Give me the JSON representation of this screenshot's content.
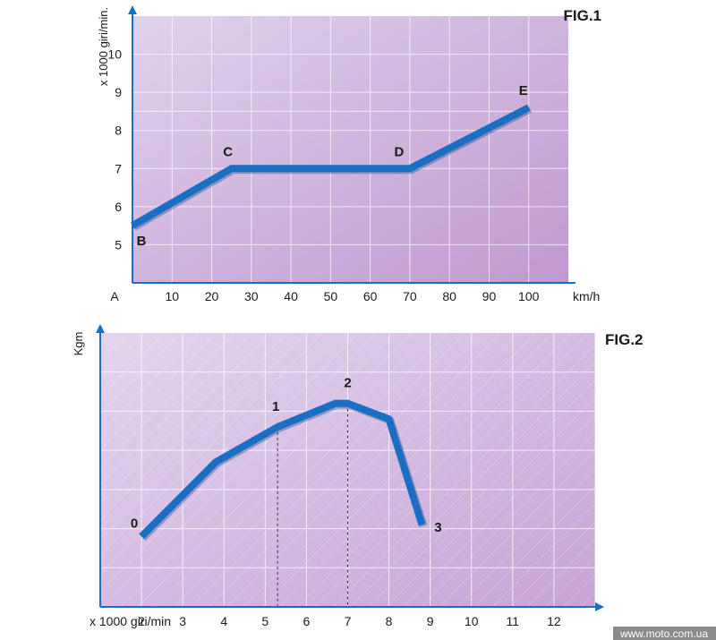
{
  "chart_data": [
    {
      "type": "line",
      "figure_label": "FIG.1",
      "xlabel": "km/h",
      "ylabel": "x 1000 giri/min.",
      "origin_label": "A",
      "x_ticks": [
        10,
        20,
        30,
        40,
        50,
        60,
        70,
        80,
        90,
        100
      ],
      "y_ticks": [
        5,
        6,
        7,
        8,
        9,
        10
      ],
      "xlim": [
        0,
        110
      ],
      "ylim": [
        4,
        11
      ],
      "grid": true,
      "series": [
        {
          "x": [
            0,
            25,
            70,
            100
          ],
          "y": [
            5.5,
            7.0,
            7.0,
            8.6
          ]
        }
      ],
      "points": [
        {
          "label": "B",
          "x": 0,
          "y": 5.5
        },
        {
          "label": "C",
          "x": 25,
          "y": 7.0
        },
        {
          "label": "D",
          "x": 70,
          "y": 7.0
        },
        {
          "label": "E",
          "x": 100,
          "y": 8.6
        }
      ],
      "colors": {
        "line": "#1a6fc4",
        "bg_start": "#e0d2ec",
        "bg_end": "#bf98cf",
        "axis": "#1a6fc4"
      }
    },
    {
      "type": "line",
      "figure_label": "FIG.2",
      "xlabel": "x 1000 giri/min",
      "ylabel": "Kgm",
      "x_ticks": [
        2,
        3,
        4,
        5,
        6,
        7,
        8,
        9,
        10,
        11,
        12
      ],
      "xlim": [
        1,
        13
      ],
      "ylim": [
        0,
        7
      ],
      "grid": true,
      "series": [
        {
          "x": [
            2.0,
            3.8,
            5.3,
            6.7,
            7.0,
            8.0,
            8.8
          ],
          "y": [
            1.8,
            3.7,
            4.6,
            5.2,
            5.2,
            4.8,
            2.1
          ]
        }
      ],
      "points": [
        {
          "label": "0",
          "x": 2.0,
          "y": 1.8
        },
        {
          "label": "1",
          "x": 5.3,
          "y": 4.6
        },
        {
          "label": "2",
          "x": 7.0,
          "y": 5.2
        },
        {
          "label": "3",
          "x": 8.8,
          "y": 2.1
        }
      ],
      "dashed_guides_x": [
        5.3,
        7.0
      ],
      "colors": {
        "line": "#1a6fc4",
        "bg_start": "#e3d5ee",
        "bg_end": "#c7a3d6",
        "axis": "#1a6fc4"
      }
    }
  ],
  "watermark": "www.moto.com.ua"
}
